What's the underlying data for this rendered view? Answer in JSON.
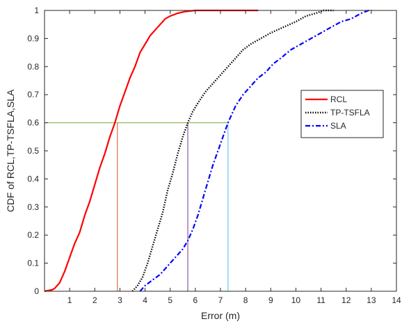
{
  "chart_data": {
    "type": "line",
    "title": "",
    "xlabel": "Error (m)",
    "ylabel": "CDF of RCL,TP-TSFLA,SLA",
    "xlim": [
      0,
      14
    ],
    "ylim": [
      0,
      1
    ],
    "xticks": [
      "1",
      "2",
      "3",
      "4",
      "5",
      "6",
      "7",
      "8",
      "9",
      "10",
      "11",
      "12",
      "13",
      "14"
    ],
    "yticks": [
      "0",
      "0.1",
      "0.2",
      "0.3",
      "0.4",
      "0.5",
      "0.6",
      "0.7",
      "0.8",
      "0.9",
      "1"
    ],
    "grid": false,
    "legend_position": "right-middle",
    "series": [
      {
        "name": "RCL",
        "color": "#ff0000",
        "style": "solid",
        "x": [
          0,
          0.3,
          0.4,
          0.6,
          0.8,
          1.0,
          1.2,
          1.4,
          1.6,
          1.8,
          2.0,
          2.2,
          2.4,
          2.6,
          2.8,
          3.0,
          3.2,
          3.4,
          3.6,
          3.8,
          4.0,
          4.2,
          4.4,
          4.6,
          4.8,
          5.0,
          5.3,
          5.6,
          6.0,
          7.0,
          8.5
        ],
        "y": [
          0,
          0.005,
          0.01,
          0.03,
          0.07,
          0.12,
          0.17,
          0.21,
          0.27,
          0.32,
          0.38,
          0.44,
          0.49,
          0.55,
          0.6,
          0.66,
          0.71,
          0.76,
          0.8,
          0.85,
          0.88,
          0.91,
          0.93,
          0.95,
          0.97,
          0.98,
          0.99,
          0.996,
          1.0,
          1.0,
          1.0
        ]
      },
      {
        "name": "TP-TSFLA",
        "color": "#000000",
        "style": "dotted",
        "x": [
          3.5,
          3.7,
          3.9,
          4.1,
          4.3,
          4.5,
          4.7,
          4.9,
          5.1,
          5.3,
          5.5,
          5.7,
          5.9,
          6.1,
          6.4,
          6.7,
          7.0,
          7.3,
          7.6,
          7.9,
          8.2,
          8.6,
          9.0,
          9.5,
          10.0,
          10.4,
          10.8,
          11.1,
          11.5
        ],
        "y": [
          0,
          0.02,
          0.05,
          0.1,
          0.16,
          0.22,
          0.28,
          0.36,
          0.42,
          0.49,
          0.55,
          0.6,
          0.64,
          0.67,
          0.71,
          0.74,
          0.77,
          0.8,
          0.83,
          0.86,
          0.88,
          0.9,
          0.92,
          0.94,
          0.96,
          0.98,
          0.99,
          1.0,
          1.0
        ]
      },
      {
        "name": "SLA",
        "color": "#0000ff",
        "style": "dashdot",
        "x": [
          3.8,
          4.0,
          4.3,
          4.6,
          4.9,
          5.2,
          5.5,
          5.7,
          5.9,
          6.1,
          6.3,
          6.5,
          6.7,
          6.9,
          7.1,
          7.3,
          7.6,
          7.9,
          8.2,
          8.5,
          8.8,
          9.1,
          9.4,
          9.8,
          10.2,
          10.6,
          11.0,
          11.4,
          11.8,
          12.2,
          12.6,
          12.9,
          13.0
        ],
        "y": [
          0,
          0.02,
          0.04,
          0.06,
          0.09,
          0.12,
          0.15,
          0.18,
          0.22,
          0.27,
          0.33,
          0.39,
          0.45,
          0.5,
          0.55,
          0.6,
          0.66,
          0.7,
          0.73,
          0.76,
          0.78,
          0.81,
          0.83,
          0.86,
          0.88,
          0.9,
          0.92,
          0.94,
          0.96,
          0.97,
          0.99,
          1.0,
          1.0
        ]
      }
    ],
    "reference_lines": [
      {
        "type": "horizontal",
        "y": 0.6,
        "x_from": 0,
        "x_to": 7.3,
        "color": "#77ac30"
      },
      {
        "type": "vertical",
        "x": 2.9,
        "y_from": 0,
        "y_to": 0.6,
        "color": "#d95319"
      },
      {
        "type": "vertical",
        "x": 5.7,
        "y_from": 0,
        "y_to": 0.6,
        "color": "#7e2f8e"
      },
      {
        "type": "vertical",
        "x": 7.3,
        "y_from": 0,
        "y_to": 0.6,
        "color": "#4dbeee"
      }
    ]
  }
}
